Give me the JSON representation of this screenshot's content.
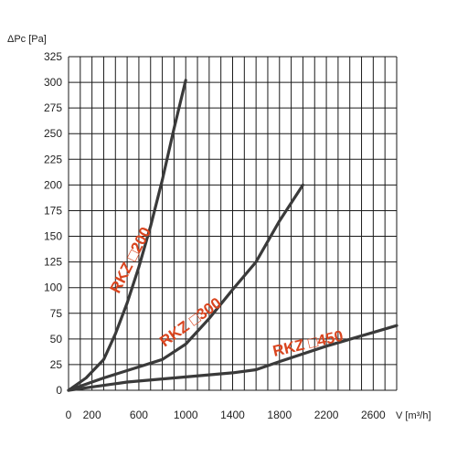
{
  "chart_data": {
    "type": "line",
    "title": "",
    "ylabel": "ΔPc [Pa]",
    "xlabel": "V [m³/h]",
    "xlim": [
      0,
      2800
    ],
    "ylim": [
      0,
      325
    ],
    "xticks": [
      "0",
      "200",
      "600",
      "1000",
      "1400",
      "1800",
      "2200",
      "2600"
    ],
    "xtick_values": [
      0,
      200,
      600,
      1000,
      1400,
      1800,
      2200,
      2600
    ],
    "yticks": [
      "0",
      "25",
      "50",
      "75",
      "100",
      "125",
      "150",
      "175",
      "200",
      "225",
      "250",
      "275",
      "300",
      "325"
    ],
    "ytick_values": [
      0,
      25,
      50,
      75,
      100,
      125,
      150,
      175,
      200,
      225,
      250,
      275,
      300,
      325
    ],
    "grid": true,
    "series": [
      {
        "name": "RKZ □200",
        "x": [
          0,
          150,
          250,
          300,
          400,
          500,
          600,
          700,
          800,
          900,
          1000
        ],
        "y": [
          0,
          12,
          24,
          30,
          55,
          85,
          120,
          160,
          205,
          255,
          302
        ]
      },
      {
        "name": "RKZ □300",
        "x": [
          0,
          300,
          800,
          1000,
          1200,
          1400,
          1600,
          1800,
          2000
        ],
        "y": [
          0,
          12,
          30,
          45,
          70,
          98,
          125,
          165,
          200
        ]
      },
      {
        "name": "RKZ □450",
        "x": [
          0,
          500,
          1000,
          1400,
          1600,
          1800,
          2200,
          2800
        ],
        "y": [
          0,
          8,
          13,
          17,
          20,
          28,
          43,
          63
        ]
      }
    ],
    "colors": {
      "curve": "#3a3a3a",
      "label": "#d9451f",
      "grid": "#1a1a1a"
    }
  }
}
